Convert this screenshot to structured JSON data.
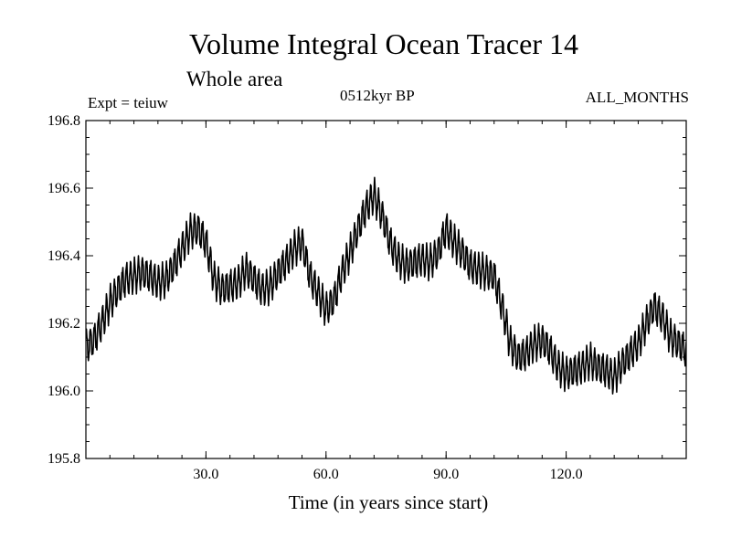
{
  "chart_data": {
    "type": "line",
    "title": "Volume Integral Ocean Tracer 14",
    "subtitle": "Whole area",
    "left_annotation": "Expt = teiuw",
    "center_annotation": "0512kyr BP",
    "right_annotation": "ALL_MONTHS",
    "xlabel": "Time (in years since start)",
    "ylabel": "",
    "xlim": [
      0,
      150
    ],
    "ylim": [
      195.8,
      196.8
    ],
    "xticks": [
      30.0,
      60.0,
      90.0,
      120.0
    ],
    "xtick_labels": [
      "30.0",
      "60.0",
      "90.0",
      "120.0"
    ],
    "yticks": [
      195.8,
      196.0,
      196.2,
      196.4,
      196.6,
      196.8
    ],
    "ytick_labels": [
      "195.8",
      "196.0",
      "196.2",
      "196.4",
      "196.6",
      "196.8"
    ],
    "grid": false,
    "legend": "none",
    "line_color": "#000000",
    "seasonal_amplitude": 0.045,
    "series": [
      {
        "name": "",
        "x": [
          0,
          2,
          4,
          6,
          8,
          10,
          12,
          14,
          16,
          18,
          20,
          22,
          24,
          26,
          28,
          30,
          32,
          34,
          36,
          38,
          40,
          42,
          44,
          46,
          48,
          50,
          52,
          54,
          56,
          58,
          60,
          62,
          64,
          66,
          68,
          70,
          72,
          74,
          76,
          78,
          80,
          82,
          84,
          86,
          88,
          90,
          92,
          94,
          96,
          98,
          100,
          102,
          104,
          106,
          108,
          110,
          112,
          114,
          116,
          118,
          120,
          122,
          124,
          126,
          128,
          130,
          132,
          134,
          136,
          138,
          140,
          142,
          144,
          146,
          148,
          150
        ],
        "y": [
          196.13,
          196.15,
          196.2,
          196.26,
          196.3,
          196.33,
          196.34,
          196.35,
          196.34,
          196.32,
          196.33,
          196.37,
          196.42,
          196.47,
          196.48,
          196.44,
          196.33,
          196.3,
          196.31,
          196.32,
          196.36,
          196.33,
          196.3,
          196.31,
          196.35,
          196.38,
          196.42,
          196.44,
          196.34,
          196.29,
          196.24,
          196.27,
          196.35,
          196.41,
          196.48,
          196.54,
          196.58,
          196.52,
          196.44,
          196.39,
          196.37,
          196.38,
          196.39,
          196.38,
          196.41,
          196.48,
          196.44,
          196.41,
          196.37,
          196.36,
          196.35,
          196.34,
          196.25,
          196.14,
          196.1,
          196.11,
          196.14,
          196.15,
          196.12,
          196.07,
          196.05,
          196.06,
          196.07,
          196.09,
          196.07,
          196.06,
          196.04,
          196.08,
          196.11,
          196.14,
          196.2,
          196.25,
          196.22,
          196.16,
          196.14,
          196.12
        ]
      }
    ]
  }
}
